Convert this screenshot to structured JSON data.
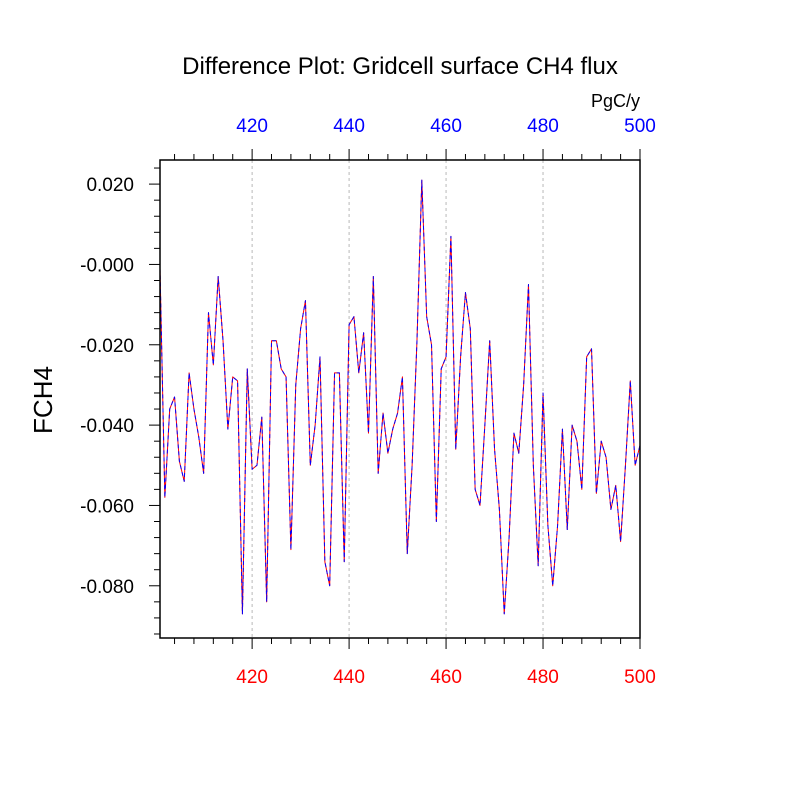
{
  "chart_data": {
    "type": "line",
    "title": "Difference Plot: Gridcell surface CH4 flux",
    "units": "PgC/y",
    "ylabel": "FCH4",
    "xlabel": "",
    "xlim": [
      401,
      500
    ],
    "ylim": [
      -0.093,
      0.026
    ],
    "x_ticks": [
      "420",
      "440",
      "460",
      "480",
      "500"
    ],
    "y_ticks": [
      "0.020",
      "-0.000",
      "-0.020",
      "-0.040",
      "-0.060",
      "-0.080"
    ],
    "grid": "vertical dashed at major x ticks",
    "colors": {
      "bottom_axis_labels": "#ff0000",
      "top_axis_labels": "#0000ff",
      "line_primary": "#ff0000",
      "line_secondary": "#0000ff"
    },
    "x_start": 401,
    "series": [
      {
        "color": "#ff0000",
        "values": [
          -0.001,
          -0.058,
          -0.036,
          -0.033,
          -0.049,
          -0.054,
          -0.027,
          -0.036,
          -0.043,
          -0.052,
          -0.012,
          -0.025,
          -0.003,
          -0.019,
          -0.041,
          -0.028,
          -0.029,
          -0.087,
          -0.026,
          -0.051,
          -0.05,
          -0.038,
          -0.084,
          -0.019,
          -0.019,
          -0.026,
          -0.028,
          -0.071,
          -0.03,
          -0.016,
          -0.009,
          -0.05,
          -0.04,
          -0.023,
          -0.074,
          -0.08,
          -0.027,
          -0.027,
          -0.074,
          -0.015,
          -0.013,
          -0.027,
          -0.017,
          -0.042,
          -0.003,
          -0.052,
          -0.037,
          -0.047,
          -0.041,
          -0.037,
          -0.028,
          -0.072,
          -0.05,
          -0.019,
          0.021,
          -0.013,
          -0.02,
          -0.064,
          -0.026,
          -0.023,
          0.007,
          -0.046,
          -0.023,
          -0.007,
          -0.016,
          -0.056,
          -0.06,
          -0.04,
          -0.019,
          -0.046,
          -0.061,
          -0.087,
          -0.068,
          -0.042,
          -0.047,
          -0.03,
          -0.005,
          -0.05,
          -0.075,
          -0.032,
          -0.065,
          -0.08,
          -0.065,
          -0.041,
          -0.066,
          -0.04,
          -0.044,
          -0.056,
          -0.023,
          -0.021,
          -0.057,
          -0.044,
          -0.048,
          -0.061,
          -0.055,
          -0.069,
          -0.05,
          -0.029,
          -0.05,
          -0.045
        ]
      },
      {
        "color": "#0000ff",
        "values": [
          -0.001,
          -0.058,
          -0.036,
          -0.033,
          -0.049,
          -0.054,
          -0.027,
          -0.036,
          -0.043,
          -0.052,
          -0.012,
          -0.025,
          -0.003,
          -0.019,
          -0.041,
          -0.028,
          -0.029,
          -0.087,
          -0.026,
          -0.051,
          -0.05,
          -0.038,
          -0.084,
          -0.019,
          -0.019,
          -0.026,
          -0.028,
          -0.071,
          -0.03,
          -0.016,
          -0.009,
          -0.05,
          -0.04,
          -0.023,
          -0.074,
          -0.08,
          -0.027,
          -0.027,
          -0.074,
          -0.015,
          -0.013,
          -0.027,
          -0.017,
          -0.042,
          -0.003,
          -0.052,
          -0.037,
          -0.047,
          -0.041,
          -0.037,
          -0.028,
          -0.072,
          -0.05,
          -0.019,
          0.021,
          -0.013,
          -0.02,
          -0.064,
          -0.026,
          -0.023,
          0.007,
          -0.046,
          -0.023,
          -0.007,
          -0.016,
          -0.056,
          -0.06,
          -0.04,
          -0.019,
          -0.046,
          -0.061,
          -0.087,
          -0.068,
          -0.042,
          -0.047,
          -0.03,
          -0.005,
          -0.05,
          -0.075,
          -0.032,
          -0.065,
          -0.08,
          -0.065,
          -0.041,
          -0.066,
          -0.04,
          -0.044,
          -0.056,
          -0.023,
          -0.021,
          -0.057,
          -0.044,
          -0.048,
          -0.061,
          -0.055,
          -0.069,
          -0.05,
          -0.029,
          -0.05,
          -0.045
        ]
      }
    ]
  }
}
